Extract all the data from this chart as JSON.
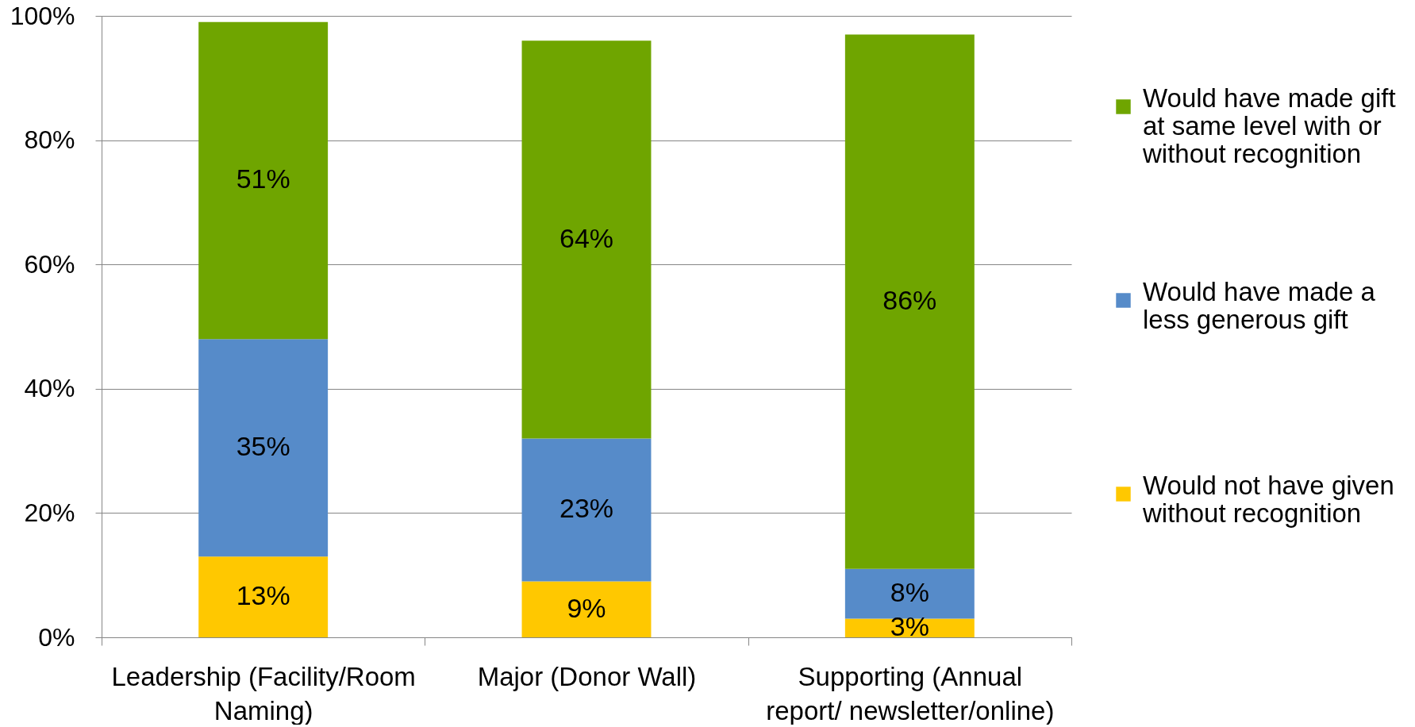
{
  "chart_data": {
    "type": "bar",
    "stacked": true,
    "categories": [
      "Leadership (Facility/Room Naming)",
      "Major (Donor Wall)",
      "Supporting (Annual report/ newsletter/online)"
    ],
    "series": [
      {
        "name": "Would not have given without recognition",
        "color": "#ffc800",
        "values": [
          13,
          9,
          3
        ],
        "value_labels": [
          "13%",
          "9%",
          "3%"
        ]
      },
      {
        "name": "Would have made a less generous gift",
        "color": "#568bc9",
        "values": [
          35,
          23,
          8
        ],
        "value_labels": [
          "35%",
          "23%",
          "8%"
        ]
      },
      {
        "name": "Would have made gift at same level with or without recognition",
        "color": "#6fa500",
        "values": [
          51,
          64,
          86
        ],
        "value_labels": [
          "51%",
          "64%",
          "86%"
        ]
      }
    ],
    "ylim": [
      0,
      100
    ],
    "yticks": [
      {
        "value": 0,
        "label": "0%"
      },
      {
        "value": 20,
        "label": "20%"
      },
      {
        "value": 40,
        "label": "40%"
      },
      {
        "value": 60,
        "label": "60%"
      },
      {
        "value": 80,
        "label": "80%"
      },
      {
        "value": 100,
        "label": "100%"
      }
    ],
    "grid": "y",
    "legend": "right"
  }
}
